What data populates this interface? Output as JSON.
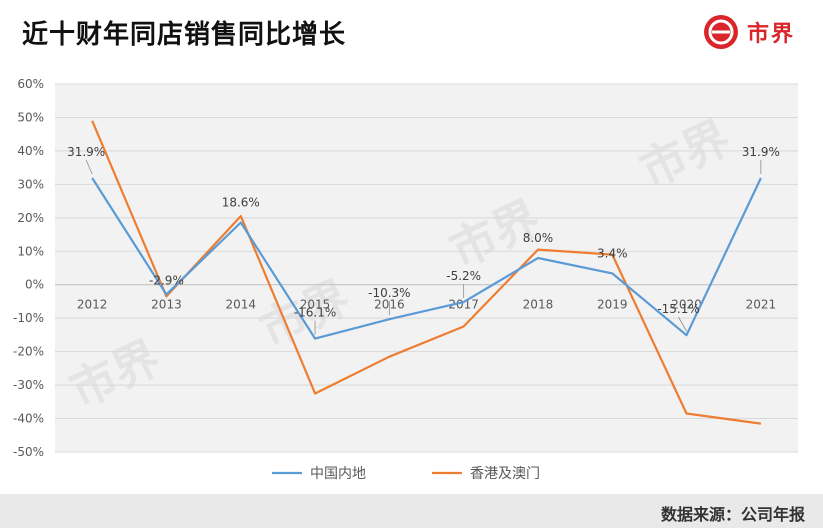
{
  "header": {
    "title": "近十财年同店销售同比增长",
    "logo_text": "市界",
    "logo_icon": "brand-logo-icon",
    "brand_color": "#d8262a"
  },
  "footer": {
    "source": "数据来源：公司年报"
  },
  "watermark_text": "市界",
  "chart_data": {
    "type": "line",
    "categories": [
      "2012",
      "2013",
      "2014",
      "2015",
      "2016",
      "2017",
      "2018",
      "2019",
      "2020",
      "2021"
    ],
    "y_ticks": [
      "60%",
      "50%",
      "40%",
      "30%",
      "20%",
      "10%",
      "0%",
      "-10%",
      "-20%",
      "-30%",
      "-40%",
      "-50%"
    ],
    "ylim": [
      -50,
      60
    ],
    "grid": true,
    "legend_position": "bottom",
    "series": [
      {
        "name": "中国内地",
        "color": "#5b9bd5",
        "values": [
          31.9,
          -2.9,
          18.6,
          -16.1,
          -10.3,
          -5.2,
          8.0,
          3.4,
          -15.1,
          31.9
        ],
        "labels": [
          "31.9%",
          "-2.9%",
          "18.6%",
          "-16.1%",
          "-10.3%",
          "-5.2%",
          "8.0%",
          "3.4%",
          "-15.1%",
          "31.9%"
        ]
      },
      {
        "name": "香港及澳门",
        "color": "#ed7d31",
        "values": [
          49,
          -3.5,
          20.5,
          -32.5,
          -21.5,
          -12.5,
          10.5,
          9,
          -38.5,
          -41.5
        ]
      }
    ]
  }
}
